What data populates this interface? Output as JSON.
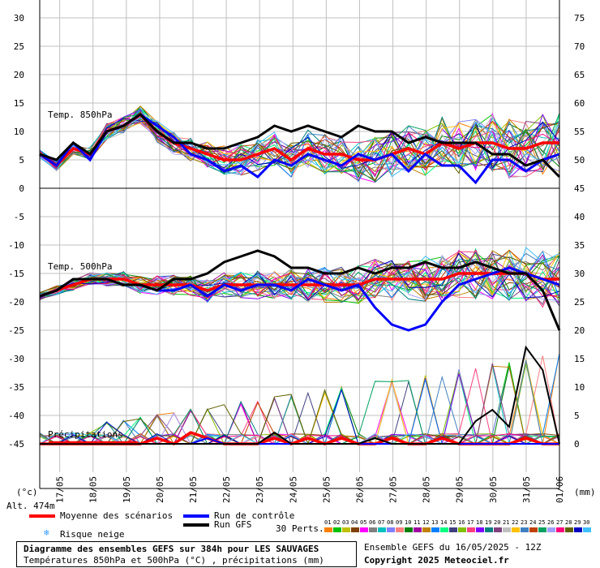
{
  "chart_data": {
    "type": "line",
    "x_dates": [
      "17/05",
      "18/05",
      "19/05",
      "20/05",
      "21/05",
      "22/05",
      "23/05",
      "24/05",
      "25/05",
      "26/05",
      "27/05",
      "28/05",
      "29/05",
      "30/05",
      "31/05",
      "01/06"
    ],
    "left_axis": {
      "unit": "(°c)",
      "ticks": [
        30,
        25,
        20,
        15,
        10,
        5,
        0,
        -5,
        -10,
        -15,
        -20,
        -25,
        -30,
        -35,
        -40,
        -45
      ]
    },
    "right_axis": {
      "unit": "(mm)",
      "ticks": [
        75,
        70,
        65,
        60,
        55,
        50,
        45,
        40,
        35,
        30,
        25,
        20,
        15,
        10,
        5,
        0
      ]
    },
    "panel_labels": {
      "t850": "Temp. 850hPa",
      "t500": "Temp. 500hPa",
      "precip": "Précipitations"
    },
    "altitude": "Alt. 474m",
    "series": [
      {
        "name": "Moyenne des scénarios",
        "color": "#ff0000",
        "t850": [
          6,
          4,
          7,
          6,
          10,
          11,
          13,
          10,
          8,
          7,
          6,
          5,
          5,
          6,
          7,
          5,
          7,
          6,
          6,
          5,
          5,
          6,
          7,
          6,
          8,
          7,
          8,
          8,
          7,
          7,
          8,
          8
        ],
        "t500": [
          -19,
          -18,
          -17,
          -16,
          -16,
          -16,
          -17,
          -17,
          -17,
          -17,
          -18,
          -17,
          -17,
          -17,
          -17,
          -17,
          -17,
          -17,
          -17,
          -17,
          -16,
          -16,
          -16,
          -16,
          -16,
          -15,
          -15,
          -15,
          -15,
          -15,
          -16,
          -16
        ],
        "precip": [
          0,
          0,
          0,
          0,
          0,
          0,
          0,
          1,
          0,
          2,
          1,
          0,
          0,
          0,
          1,
          0,
          1,
          0,
          1,
          0,
          0,
          1,
          0,
          0,
          1,
          0,
          0,
          0,
          0,
          1,
          0,
          0
        ]
      },
      {
        "name": "Run de contrôle",
        "color": "#0000ff",
        "t850": [
          6,
          4,
          8,
          5,
          10,
          11,
          13,
          11,
          9,
          6,
          5,
          3,
          4,
          2,
          5,
          4,
          6,
          5,
          4,
          6,
          5,
          6,
          3,
          6,
          4,
          4,
          1,
          5,
          5,
          3,
          5,
          6
        ],
        "t500": [
          -19,
          -18,
          -16,
          -16,
          -16,
          -17,
          -17,
          -18,
          -18,
          -17,
          -19,
          -17,
          -18,
          -17,
          -17,
          -18,
          -16,
          -17,
          -18,
          -17,
          -21,
          -24,
          -25,
          -24,
          -20,
          -17,
          -16,
          -15,
          -14,
          -15,
          -16,
          -17
        ],
        "precip": [
          0,
          0,
          0,
          0,
          0,
          0,
          0,
          0,
          0,
          0,
          1,
          0,
          0,
          0,
          0,
          0,
          0,
          0,
          0,
          0,
          0,
          0,
          0,
          0,
          0,
          0,
          0,
          0,
          0,
          0,
          0,
          0
        ]
      },
      {
        "name": "Run GFS",
        "color": "#000000",
        "t850": [
          6,
          5,
          8,
          6,
          10,
          11,
          13,
          10,
          8,
          8,
          7,
          7,
          8,
          9,
          11,
          10,
          11,
          10,
          9,
          11,
          10,
          10,
          8,
          9,
          8,
          8,
          8,
          6,
          6,
          4,
          5,
          2
        ],
        "t500": [
          -19,
          -18,
          -16,
          -16,
          -16,
          -17,
          -17,
          -18,
          -16,
          -16,
          -15,
          -13,
          -12,
          -11,
          -12,
          -14,
          -14,
          -15,
          -15,
          -14,
          -15,
          -14,
          -14,
          -13,
          -14,
          -14,
          -13,
          -14,
          -15,
          -15,
          -18,
          -25
        ],
        "precip": [
          0,
          0,
          0,
          0,
          0,
          0,
          0,
          0,
          0,
          0,
          0,
          0,
          0,
          0,
          2,
          0,
          0,
          0,
          0,
          0,
          1,
          0,
          0,
          0,
          0,
          0,
          4,
          6,
          3,
          17,
          13,
          0
        ]
      }
    ]
  },
  "legend": {
    "mean_label": "Moyenne des scénarios",
    "control_label": "Run de contrôle",
    "gfs_label": "Run GFS",
    "snow_label": "Risque neige",
    "perts_label": "30 Perts.",
    "pert_numbers": [
      "01",
      "02",
      "03",
      "04",
      "05",
      "06",
      "07",
      "08",
      "09",
      "10",
      "11",
      "12",
      "13",
      "14",
      "15",
      "16",
      "17",
      "18",
      "19",
      "20",
      "21",
      "22",
      "23",
      "24",
      "25",
      "26",
      "27",
      "28",
      "29",
      "30"
    ],
    "pert_colors": [
      "#ff8000",
      "#00c000",
      "#c0c000",
      "#804000",
      "#ff00ff",
      "#808080",
      "#00c0c0",
      "#8080ff",
      "#ff8080",
      "#008000",
      "#a000a0",
      "#c08000",
      "#0080ff",
      "#00ff80",
      "#404080",
      "#80c000",
      "#ff4080",
      "#8000ff",
      "#008080",
      "#804080",
      "#c0c0c0",
      "#ffc000",
      "#4080c0",
      "#c04000",
      "#00a060",
      "#a0a0ff",
      "#ff0080",
      "#606000",
      "#0000c0",
      "#40c0ff"
    ]
  },
  "footer": {
    "title": "Diagramme des ensembles GEFS sur 384h pour LES SAUVAGES",
    "subtitle": "Températures 850hPa et 500hPa (°C) , précipitations (mm)",
    "run_info": "Ensemble GEFS du 16/05/2025 - 12Z",
    "copyright": "Copyright 2025 Meteociel.fr"
  },
  "colors": {
    "mean": "#ff0000",
    "control": "#0000ff",
    "gfs": "#000000",
    "grid": "#c0c0c0",
    "snow": "#3399ff"
  }
}
